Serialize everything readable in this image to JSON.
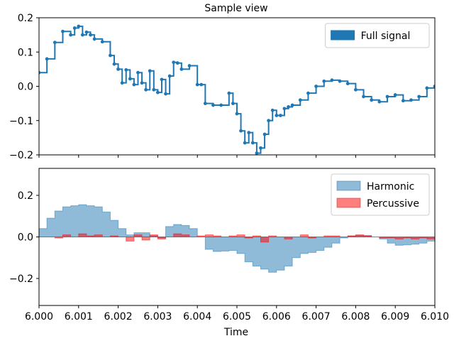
{
  "chart_data": [
    {
      "type": "line",
      "title": "Sample view",
      "xlim": [
        6.0,
        6.01
      ],
      "ylim": [
        -0.2,
        0.2
      ],
      "yticks": [
        -0.2,
        -0.1,
        0.0,
        0.1,
        0.2
      ],
      "ytick_labels": [
        "−0.2",
        "−0.1",
        "0.0",
        "0.1",
        "0.2"
      ],
      "legend": {
        "placement": "top-right"
      },
      "series": [
        {
          "name": "Full signal",
          "color": "#1f77b4",
          "style": "step-with-markers",
          "x": [
            6.0,
            6.0002,
            6.0004,
            6.0006,
            6.0008,
            6.0009,
            6.001,
            6.0011,
            6.0012,
            6.0013,
            6.0014,
            6.0016,
            6.0018,
            6.0019,
            6.002,
            6.0021,
            6.0022,
            6.0023,
            6.0024,
            6.0025,
            6.0026,
            6.0027,
            6.0028,
            6.0029,
            6.003,
            6.0031,
            6.0032,
            6.0033,
            6.0034,
            6.0035,
            6.0036,
            6.0038,
            6.004,
            6.0041,
            6.0042,
            6.0044,
            6.0046,
            6.0048,
            6.0049,
            6.005,
            6.0051,
            6.0052,
            6.0053,
            6.0054,
            6.0055,
            6.0056,
            6.0057,
            6.0058,
            6.0059,
            6.006,
            6.0061,
            6.0062,
            6.0063,
            6.0064,
            6.0066,
            6.0068,
            6.007,
            6.0072,
            6.0074,
            6.0076,
            6.0078,
            6.008,
            6.0082,
            6.0084,
            6.0086,
            6.0088,
            6.009,
            6.0092,
            6.0094,
            6.0096,
            6.0098,
            6.01
          ],
          "y": [
            0.04,
            0.08,
            0.128,
            0.16,
            0.15,
            0.17,
            0.175,
            0.15,
            0.158,
            0.15,
            0.138,
            0.13,
            0.09,
            0.065,
            0.05,
            0.01,
            0.048,
            0.022,
            0.005,
            0.04,
            0.01,
            -0.01,
            0.045,
            -0.01,
            -0.018,
            0.02,
            -0.022,
            0.03,
            0.07,
            0.068,
            0.05,
            0.06,
            0.005,
            0.005,
            -0.05,
            -0.055,
            -0.055,
            -0.02,
            -0.05,
            -0.08,
            -0.13,
            -0.165,
            -0.135,
            -0.165,
            -0.195,
            -0.18,
            -0.14,
            -0.1,
            -0.07,
            -0.085,
            -0.085,
            -0.065,
            -0.06,
            -0.055,
            -0.04,
            -0.02,
            0.0,
            0.015,
            0.018,
            0.015,
            0.008,
            -0.01,
            -0.03,
            -0.04,
            -0.045,
            -0.03,
            -0.025,
            -0.042,
            -0.04,
            -0.03,
            -0.005,
            0.0
          ]
        }
      ]
    },
    {
      "type": "area",
      "xlabel": "Time",
      "xlim": [
        6.0,
        6.01
      ],
      "ylim": [
        -0.33,
        0.33
      ],
      "xticks": [
        6.0,
        6.001,
        6.002,
        6.003,
        6.004,
        6.005,
        6.006,
        6.007,
        6.008,
        6.009,
        6.01
      ],
      "xtick_labels": [
        "6.000",
        "6.001",
        "6.002",
        "6.003",
        "6.004",
        "6.005",
        "6.006",
        "6.007",
        "6.008",
        "6.009",
        "6.010"
      ],
      "yticks": [
        -0.2,
        0.0,
        0.2
      ],
      "ytick_labels": [
        "−0.2",
        "0.0",
        "0.2"
      ],
      "legend": {
        "placement": "top-right"
      },
      "series": [
        {
          "name": "Harmonic",
          "color": "#1f77b4",
          "alpha": 0.5,
          "x": [
            6.0,
            6.0002,
            6.0004,
            6.0006,
            6.0008,
            6.001,
            6.0012,
            6.0014,
            6.0016,
            6.0018,
            6.002,
            6.0022,
            6.0024,
            6.0026,
            6.0028,
            6.003,
            6.0032,
            6.0034,
            6.0036,
            6.0038,
            6.004,
            6.0042,
            6.0044,
            6.0046,
            6.0048,
            6.005,
            6.0052,
            6.0054,
            6.0056,
            6.0058,
            6.006,
            6.0062,
            6.0064,
            6.0066,
            6.0068,
            6.007,
            6.0072,
            6.0074,
            6.0076,
            6.0078,
            6.008,
            6.0082,
            6.0084,
            6.0086,
            6.0088,
            6.009,
            6.0092,
            6.0094,
            6.0096,
            6.0098,
            6.01
          ],
          "y": [
            0.04,
            0.09,
            0.125,
            0.145,
            0.15,
            0.155,
            0.15,
            0.145,
            0.12,
            0.08,
            0.04,
            0.01,
            0.02,
            0.02,
            0.005,
            -0.005,
            0.05,
            0.06,
            0.055,
            0.04,
            0.0,
            -0.06,
            -0.07,
            -0.068,
            -0.065,
            -0.08,
            -0.12,
            -0.14,
            -0.155,
            -0.17,
            -0.16,
            -0.14,
            -0.1,
            -0.08,
            -0.075,
            -0.065,
            -0.05,
            -0.03,
            -0.005,
            0.005,
            0.008,
            0.007,
            0.0,
            -0.01,
            -0.03,
            -0.04,
            -0.038,
            -0.035,
            -0.03,
            -0.02,
            0.0
          ]
        },
        {
          "name": "Percussive",
          "color": "#ff0000",
          "alpha": 0.5,
          "x": [
            6.0,
            6.0002,
            6.0004,
            6.0006,
            6.0008,
            6.001,
            6.0012,
            6.0014,
            6.0016,
            6.0018,
            6.002,
            6.0022,
            6.0024,
            6.0026,
            6.0028,
            6.003,
            6.0032,
            6.0034,
            6.0036,
            6.0038,
            6.004,
            6.0042,
            6.0044,
            6.0046,
            6.0048,
            6.005,
            6.0052,
            6.0054,
            6.0056,
            6.0058,
            6.006,
            6.0062,
            6.0064,
            6.0066,
            6.0068,
            6.007,
            6.0072,
            6.0074,
            6.0076,
            6.0078,
            6.008,
            6.0082,
            6.0084,
            6.0086,
            6.0088,
            6.009,
            6.0092,
            6.0094,
            6.0096,
            6.0098,
            6.01
          ],
          "y": [
            0.0,
            0.0,
            -0.005,
            0.01,
            0.0,
            0.015,
            0.005,
            0.01,
            0.0,
            0.005,
            0.0,
            -0.02,
            0.01,
            -0.015,
            0.01,
            -0.01,
            0.0,
            0.015,
            0.01,
            0.0,
            0.005,
            0.01,
            0.005,
            0.0,
            0.005,
            0.01,
            -0.005,
            0.005,
            -0.025,
            0.005,
            0.0,
            -0.01,
            0.0,
            0.01,
            -0.005,
            0.0,
            0.005,
            0.005,
            0.0,
            0.005,
            0.01,
            0.005,
            0.0,
            -0.005,
            -0.005,
            -0.01,
            -0.005,
            -0.01,
            -0.005,
            -0.01,
            -0.005
          ]
        }
      ]
    }
  ]
}
